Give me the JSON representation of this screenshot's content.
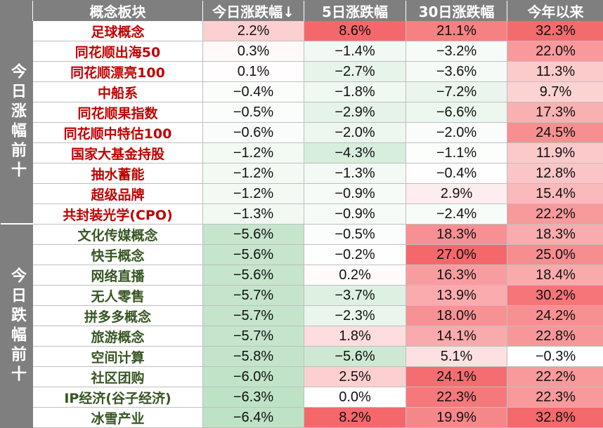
{
  "header": {
    "name": "概念板块",
    "today": "今日涨跌幅↓",
    "five_day": "5日涨跌幅",
    "thirty_day": "30日涨跌幅",
    "ytd": "今年以来"
  },
  "groups": {
    "top": "今日涨幅前十",
    "bottom": "今日跌幅前十"
  },
  "rows": [
    {
      "name": "足球概念",
      "today": "2.2%",
      "d5": "8.6%",
      "d30": "21.1%",
      "ytd": "32.3%"
    },
    {
      "name": "同花顺出海50",
      "today": "0.3%",
      "d5": "−1.4%",
      "d30": "−3.2%",
      "ytd": "22.0%"
    },
    {
      "name": "同花顺漂亮100",
      "today": "0.1%",
      "d5": "−2.7%",
      "d30": "−3.6%",
      "ytd": "11.3%"
    },
    {
      "name": "中船系",
      "today": "−0.4%",
      "d5": "−1.8%",
      "d30": "−7.2%",
      "ytd": "9.7%"
    },
    {
      "name": "同花顺果指数",
      "today": "−0.5%",
      "d5": "−2.9%",
      "d30": "−6.6%",
      "ytd": "17.3%"
    },
    {
      "name": "同花顺中特估100",
      "today": "−0.6%",
      "d5": "−2.0%",
      "d30": "−2.0%",
      "ytd": "24.5%"
    },
    {
      "name": "国家大基金持股",
      "today": "−1.2%",
      "d5": "−4.3%",
      "d30": "−1.1%",
      "ytd": "11.9%"
    },
    {
      "name": "抽水蓄能",
      "today": "−1.2%",
      "d5": "−1.3%",
      "d30": "−0.4%",
      "ytd": "12.8%"
    },
    {
      "name": "超级品牌",
      "today": "−1.2%",
      "d5": "−0.9%",
      "d30": "2.9%",
      "ytd": "15.4%"
    },
    {
      "name": "共封装光学(CPO)",
      "today": "−1.3%",
      "d5": "−0.9%",
      "d30": "−2.4%",
      "ytd": "22.2%"
    },
    {
      "name": "文化传媒概念",
      "today": "−5.6%",
      "d5": "−0.5%",
      "d30": "18.3%",
      "ytd": "18.3%"
    },
    {
      "name": "快手概念",
      "today": "−5.6%",
      "d5": "−0.2%",
      "d30": "27.0%",
      "ytd": "25.0%"
    },
    {
      "name": "网络直播",
      "today": "−5.6%",
      "d5": "0.2%",
      "d30": "16.3%",
      "ytd": "18.4%"
    },
    {
      "name": "无人零售",
      "today": "−5.7%",
      "d5": "−3.7%",
      "d30": "13.9%",
      "ytd": "30.2%"
    },
    {
      "name": "拼多多概念",
      "today": "−5.7%",
      "d5": "−2.3%",
      "d30": "18.0%",
      "ytd": "24.2%"
    },
    {
      "name": "旅游概念",
      "today": "−5.7%",
      "d5": "1.8%",
      "d30": "14.1%",
      "ytd": "22.8%"
    },
    {
      "name": "空间计算",
      "today": "−5.8%",
      "d5": "−5.6%",
      "d30": "5.1%",
      "ytd": "−0.3%"
    },
    {
      "name": "社区团购",
      "today": "−6.0%",
      "d5": "2.5%",
      "d30": "24.1%",
      "ytd": "22.2%"
    },
    {
      "name": "IP经济(谷子经济)",
      "today": "−6.3%",
      "d5": "0.0%",
      "d30": "22.3%",
      "ytd": "22.3%"
    },
    {
      "name": "冰雪产业",
      "today": "−6.4%",
      "d5": "8.2%",
      "d30": "19.9%",
      "ytd": "32.8%"
    }
  ],
  "colors": {
    "header_bg": "#7f7f7f",
    "top_name": "#c00000",
    "bottom_name": "#375623",
    "heat_positive_max": "#f4686b",
    "heat_negative_max": "#b7dfc0"
  }
}
